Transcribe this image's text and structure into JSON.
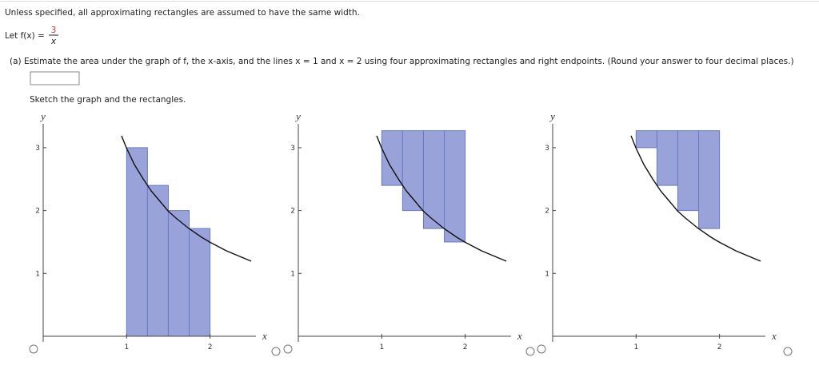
{
  "intro": "Unless specified, all approximating rectangles are assumed to have the same width.",
  "function": {
    "label": "Let f(x) =",
    "numerator": "3",
    "denominator": "x"
  },
  "part_a": {
    "prompt": "(a)  Estimate the area under the graph of f, the x-axis, and the lines x = 1 and x = 2 using four approximating rectangles and right endpoints. (Round your answer to four decimal places.)",
    "sketch_prompt": "Sketch the graph and the rectangles."
  },
  "graphs": [
    {
      "x_label": "x",
      "y_label": "y",
      "xlim": [
        0,
        2.55
      ],
      "ylim": [
        0,
        3.38
      ],
      "xticks": [
        1,
        2
      ],
      "yticks": [
        1,
        2,
        3
      ],
      "rects": [
        {
          "x0": 1,
          "x1": 1.25,
          "bottom": 0,
          "top": 3
        },
        {
          "x0": 1.25,
          "x1": 1.5,
          "bottom": 0,
          "top": 2.4
        },
        {
          "x0": 1.5,
          "x1": 1.75,
          "bottom": 0,
          "top": 2
        },
        {
          "x0": 1.75,
          "x1": 2,
          "bottom": 0,
          "top": 1.714
        }
      ]
    },
    {
      "x_label": "x",
      "y_label": "y",
      "xlim": [
        0,
        2.55
      ],
      "ylim": [
        0,
        3.38
      ],
      "xticks": [
        1,
        2
      ],
      "yticks": [
        1,
        2,
        3
      ],
      "rects": [
        {
          "x0": 1,
          "x1": 1.25,
          "bottom": 2.4,
          "top": 3.27
        },
        {
          "x0": 1.25,
          "x1": 1.5,
          "bottom": 2,
          "top": 3.27
        },
        {
          "x0": 1.5,
          "x1": 1.75,
          "bottom": 1.714,
          "top": 3.27
        },
        {
          "x0": 1.75,
          "x1": 2,
          "bottom": 1.5,
          "top": 3.27
        }
      ]
    },
    {
      "x_label": "x",
      "y_label": "y",
      "xlim": [
        0,
        2.55
      ],
      "ylim": [
        0,
        3.38
      ],
      "xticks": [
        1,
        2
      ],
      "yticks": [
        1,
        2,
        3
      ],
      "rects": [
        {
          "x0": 1,
          "x1": 1.25,
          "bottom": 3,
          "top": 3.27
        },
        {
          "x0": 1.25,
          "x1": 1.5,
          "bottom": 2.4,
          "top": 3.27
        },
        {
          "x0": 1.5,
          "x1": 1.75,
          "bottom": 2,
          "top": 3.27
        },
        {
          "x0": 1.75,
          "x1": 2,
          "bottom": 1.714,
          "top": 3.27
        }
      ]
    }
  ]
}
